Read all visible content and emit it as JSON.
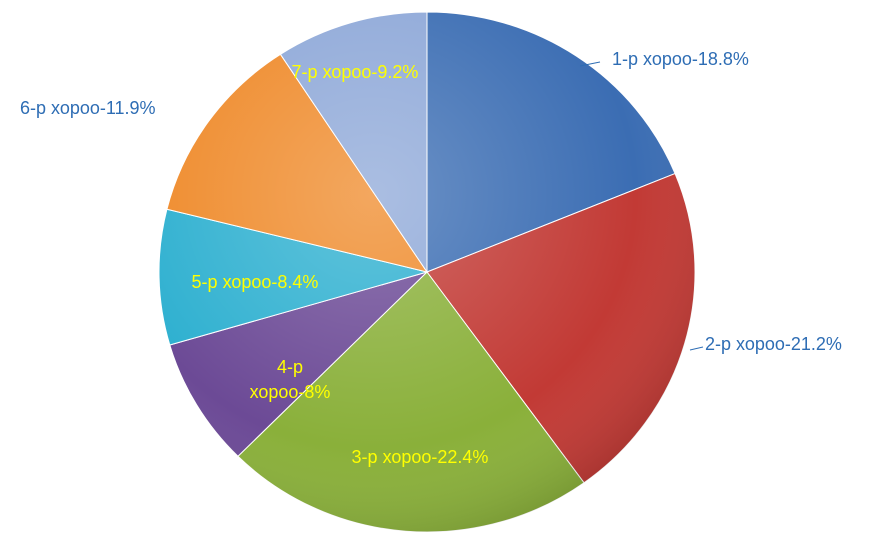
{
  "chart_data": {
    "type": "pie",
    "values": [
      18.8,
      21.2,
      22.4,
      8,
      8.4,
      11.9,
      9.2
    ],
    "value_labels": [
      "1-р хороо-18.8%",
      "2-р хороо-21.2%",
      "3-р хороо-22.4%",
      "4-р хороо-8%",
      "5-р хороо-8.4%",
      "6-р хороо-11.9%",
      "7-р хороо-9.2%"
    ],
    "colors": [
      "#3b6db3",
      "#c23a35",
      "#8ab03a",
      "#6c4a96",
      "#2eb0d0",
      "#ef8a2a",
      "#8ea8d8"
    ]
  }
}
